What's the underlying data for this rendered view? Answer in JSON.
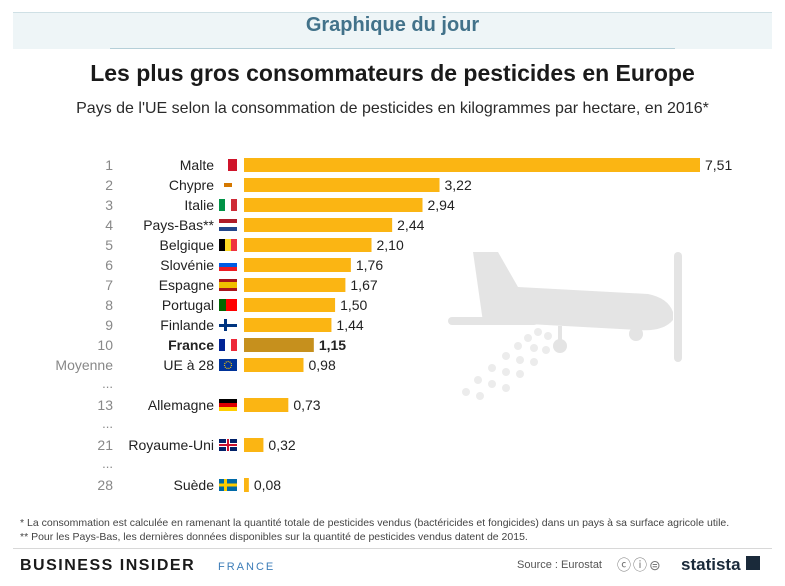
{
  "header": {
    "kicker": "Graphique du jour",
    "title": "Les plus gros consommateurs de pesticides en Europe",
    "subtitle": "Pays de l'UE selon la consommation de pesticides en kilogrammes par hectare, en 2016*"
  },
  "chart_data": {
    "type": "bar",
    "orientation": "horizontal",
    "categories": [
      "Malte",
      "Chypre",
      "Italie",
      "Pays-Bas**",
      "Belgique",
      "Slovénie",
      "Espagne",
      "Portugal",
      "Finlande",
      "France",
      "UE à 28",
      "Allemagne",
      "Royaume-Uni",
      "Suède"
    ],
    "ranks": [
      "1",
      "2",
      "3",
      "4",
      "5",
      "6",
      "7",
      "8",
      "9",
      "10",
      "Moyenne",
      "13",
      "21",
      "28"
    ],
    "values": [
      7.51,
      3.22,
      2.94,
      2.44,
      2.1,
      1.76,
      1.67,
      1.5,
      1.44,
      1.15,
      0.98,
      0.73,
      0.32,
      0.08
    ],
    "value_labels": [
      "7,51",
      "3,22",
      "2,94",
      "2,44",
      "2,10",
      "1,76",
      "1,67",
      "1,50",
      "1,44",
      "1,15",
      "0,98",
      "0,73",
      "0,32",
      "0,08"
    ],
    "highlight": "France",
    "gap_marker": "...",
    "flags": [
      "flag-malta-icon",
      "flag-cyprus-icon",
      "flag-italy-icon",
      "flag-netherlands-icon",
      "flag-belgium-icon",
      "flag-slovenia-icon",
      "flag-spain-icon",
      "flag-portugal-icon",
      "flag-finland-icon",
      "flag-france-icon",
      "flag-eu-icon",
      "flag-germany-icon",
      "flag-uk-icon",
      "flag-sweden-icon"
    ],
    "xlim": [
      0,
      7.51
    ],
    "colors": {
      "bar": "#fbb513",
      "highlight": "#c6901d",
      "rank": "#888888",
      "label": "#222222"
    }
  },
  "footnotes": {
    "note1": "*   La consommation est calculée en ramenant la quantité totale de pesticides vendus (bactéricides et fongicides) dans un pays à sa surface agricole utile.",
    "note2": "** Pour les Pays-Bas, les dernières données disponibles sur la quantité de pesticides vendus datent de 2015."
  },
  "footer": {
    "brand": "BUSINESS INSIDER",
    "brand_sub": "FRANCE",
    "source": "Source : Eurostat",
    "license_icons": "cc-by-nd-icons",
    "logo": "statista"
  }
}
